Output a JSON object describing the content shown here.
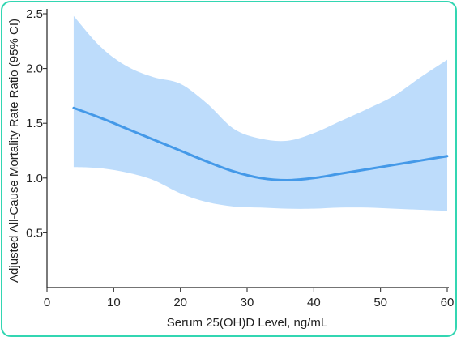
{
  "chart_data": {
    "type": "line",
    "title": "",
    "xlabel": "Serum 25(OH)D Level, ng/mL",
    "ylabel": "Adjusted All-Cause Mortality Rate Ratio (95% CI)",
    "xlim": [
      0,
      60
    ],
    "ylim": [
      0,
      2.5
    ],
    "xticks": [
      0,
      10,
      20,
      30,
      40,
      50,
      60
    ],
    "xtick_labels": [
      "0",
      "10",
      "20",
      "30",
      "40",
      "50",
      "60"
    ],
    "yticks": [
      0.5,
      1.0,
      1.5,
      2.0,
      2.5
    ],
    "ytick_labels": [
      "0.5",
      "1.0",
      "1.5",
      "2.0",
      "2.5"
    ],
    "grid": false,
    "series": [
      {
        "name": "",
        "style": "line-with-ci-band",
        "color": "#4499e8",
        "band_color": "#bddcfb",
        "x": [
          4,
          8,
          12,
          16,
          20,
          24,
          28,
          32,
          36,
          40,
          44,
          48,
          52,
          56,
          60
        ],
        "y": [
          1.64,
          1.55,
          1.45,
          1.35,
          1.25,
          1.15,
          1.06,
          1.0,
          0.98,
          1.0,
          1.04,
          1.08,
          1.12,
          1.16,
          1.2
        ],
        "lower": [
          1.1,
          1.09,
          1.05,
          0.98,
          0.86,
          0.78,
          0.74,
          0.73,
          0.72,
          0.72,
          0.73,
          0.73,
          0.72,
          0.71,
          0.7
        ],
        "upper": [
          2.48,
          2.2,
          2.02,
          1.92,
          1.86,
          1.68,
          1.45,
          1.36,
          1.34,
          1.41,
          1.52,
          1.63,
          1.75,
          1.92,
          2.08
        ]
      }
    ]
  }
}
